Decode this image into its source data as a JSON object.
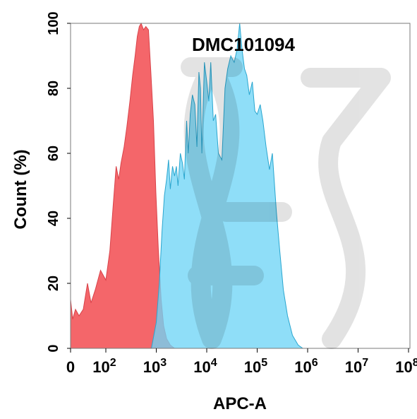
{
  "chart_data": {
    "type": "area",
    "title": "DMC101094",
    "xlabel": "APC-A",
    "ylabel": "Count  (%)",
    "x_scale": "biexponential",
    "xlim": [
      0,
      100000000
    ],
    "ylim": [
      0,
      100
    ],
    "x_ticks": [
      {
        "value": 0,
        "base": "0",
        "exp": ""
      },
      {
        "value": 100,
        "base": "10",
        "exp": "2"
      },
      {
        "value": 1000,
        "base": "10",
        "exp": "3"
      },
      {
        "value": 10000,
        "base": "10",
        "exp": "4"
      },
      {
        "value": 100000,
        "base": "10",
        "exp": "5"
      },
      {
        "value": 1000000,
        "base": "10",
        "exp": "6"
      },
      {
        "value": 10000000,
        "base": "10",
        "exp": "7"
      },
      {
        "value": 100000000,
        "base": "10",
        "exp": "8"
      }
    ],
    "y_ticks": [
      "0",
      "20",
      "40",
      "60",
      "80",
      "100"
    ],
    "grid": false,
    "legend": "none",
    "series": [
      {
        "color": "#f4666a",
        "stroke": "#d8434a",
        "points": [
          [
            0,
            15
          ],
          [
            6,
            9
          ],
          [
            14,
            12
          ],
          [
            24,
            10
          ],
          [
            36,
            12
          ],
          [
            48,
            20
          ],
          [
            58,
            14
          ],
          [
            70,
            18
          ],
          [
            85,
            24
          ],
          [
            100,
            21
          ],
          [
            120,
            30
          ],
          [
            140,
            44
          ],
          [
            160,
            56
          ],
          [
            180,
            52
          ],
          [
            200,
            57
          ],
          [
            230,
            62
          ],
          [
            260,
            68
          ],
          [
            300,
            76
          ],
          [
            340,
            84
          ],
          [
            380,
            90
          ],
          [
            420,
            96
          ],
          [
            460,
            99
          ],
          [
            500,
            100
          ],
          [
            560,
            98
          ],
          [
            620,
            99
          ],
          [
            700,
            98
          ],
          [
            780,
            85
          ],
          [
            880,
            70
          ],
          [
            980,
            48
          ],
          [
            1100,
            30
          ],
          [
            1250,
            15
          ],
          [
            1400,
            7
          ],
          [
            1600,
            3
          ],
          [
            1900,
            1
          ],
          [
            2300,
            0
          ]
        ]
      },
      {
        "color": "#6fd5f6",
        "stroke": "#2aa6cf",
        "points": [
          [
            800,
            0
          ],
          [
            1000,
            8
          ],
          [
            1150,
            20
          ],
          [
            1300,
            36
          ],
          [
            1450,
            47
          ],
          [
            1600,
            52
          ],
          [
            1750,
            58
          ],
          [
            1900,
            49
          ],
          [
            2100,
            56
          ],
          [
            2300,
            53
          ],
          [
            2500,
            56
          ],
          [
            2700,
            50
          ],
          [
            3000,
            60
          ],
          [
            3300,
            57
          ],
          [
            3600,
            52
          ],
          [
            4000,
            70
          ],
          [
            4300,
            60
          ],
          [
            4700,
            72
          ],
          [
            5200,
            78
          ],
          [
            5800,
            75
          ],
          [
            6400,
            62
          ],
          [
            7000,
            85
          ],
          [
            7500,
            80
          ],
          [
            8000,
            60
          ],
          [
            9000,
            88
          ],
          [
            10000,
            82
          ],
          [
            11000,
            76
          ],
          [
            12000,
            88
          ],
          [
            13500,
            70
          ],
          [
            15000,
            72
          ],
          [
            17000,
            60
          ],
          [
            20000,
            58
          ],
          [
            23000,
            80
          ],
          [
            26000,
            86
          ],
          [
            30000,
            90
          ],
          [
            35000,
            88
          ],
          [
            40000,
            92
          ],
          [
            45000,
            100
          ],
          [
            50000,
            92
          ],
          [
            56000,
            86
          ],
          [
            62000,
            84
          ],
          [
            70000,
            78
          ],
          [
            80000,
            82
          ],
          [
            90000,
            73
          ],
          [
            100000,
            72
          ],
          [
            115000,
            75
          ],
          [
            130000,
            70
          ],
          [
            150000,
            62
          ],
          [
            175000,
            55
          ],
          [
            200000,
            60
          ],
          [
            240000,
            42
          ],
          [
            280000,
            30
          ],
          [
            330000,
            18
          ],
          [
            400000,
            10
          ],
          [
            500000,
            4
          ],
          [
            650000,
            1
          ],
          [
            800000,
            0
          ]
        ]
      }
    ]
  }
}
